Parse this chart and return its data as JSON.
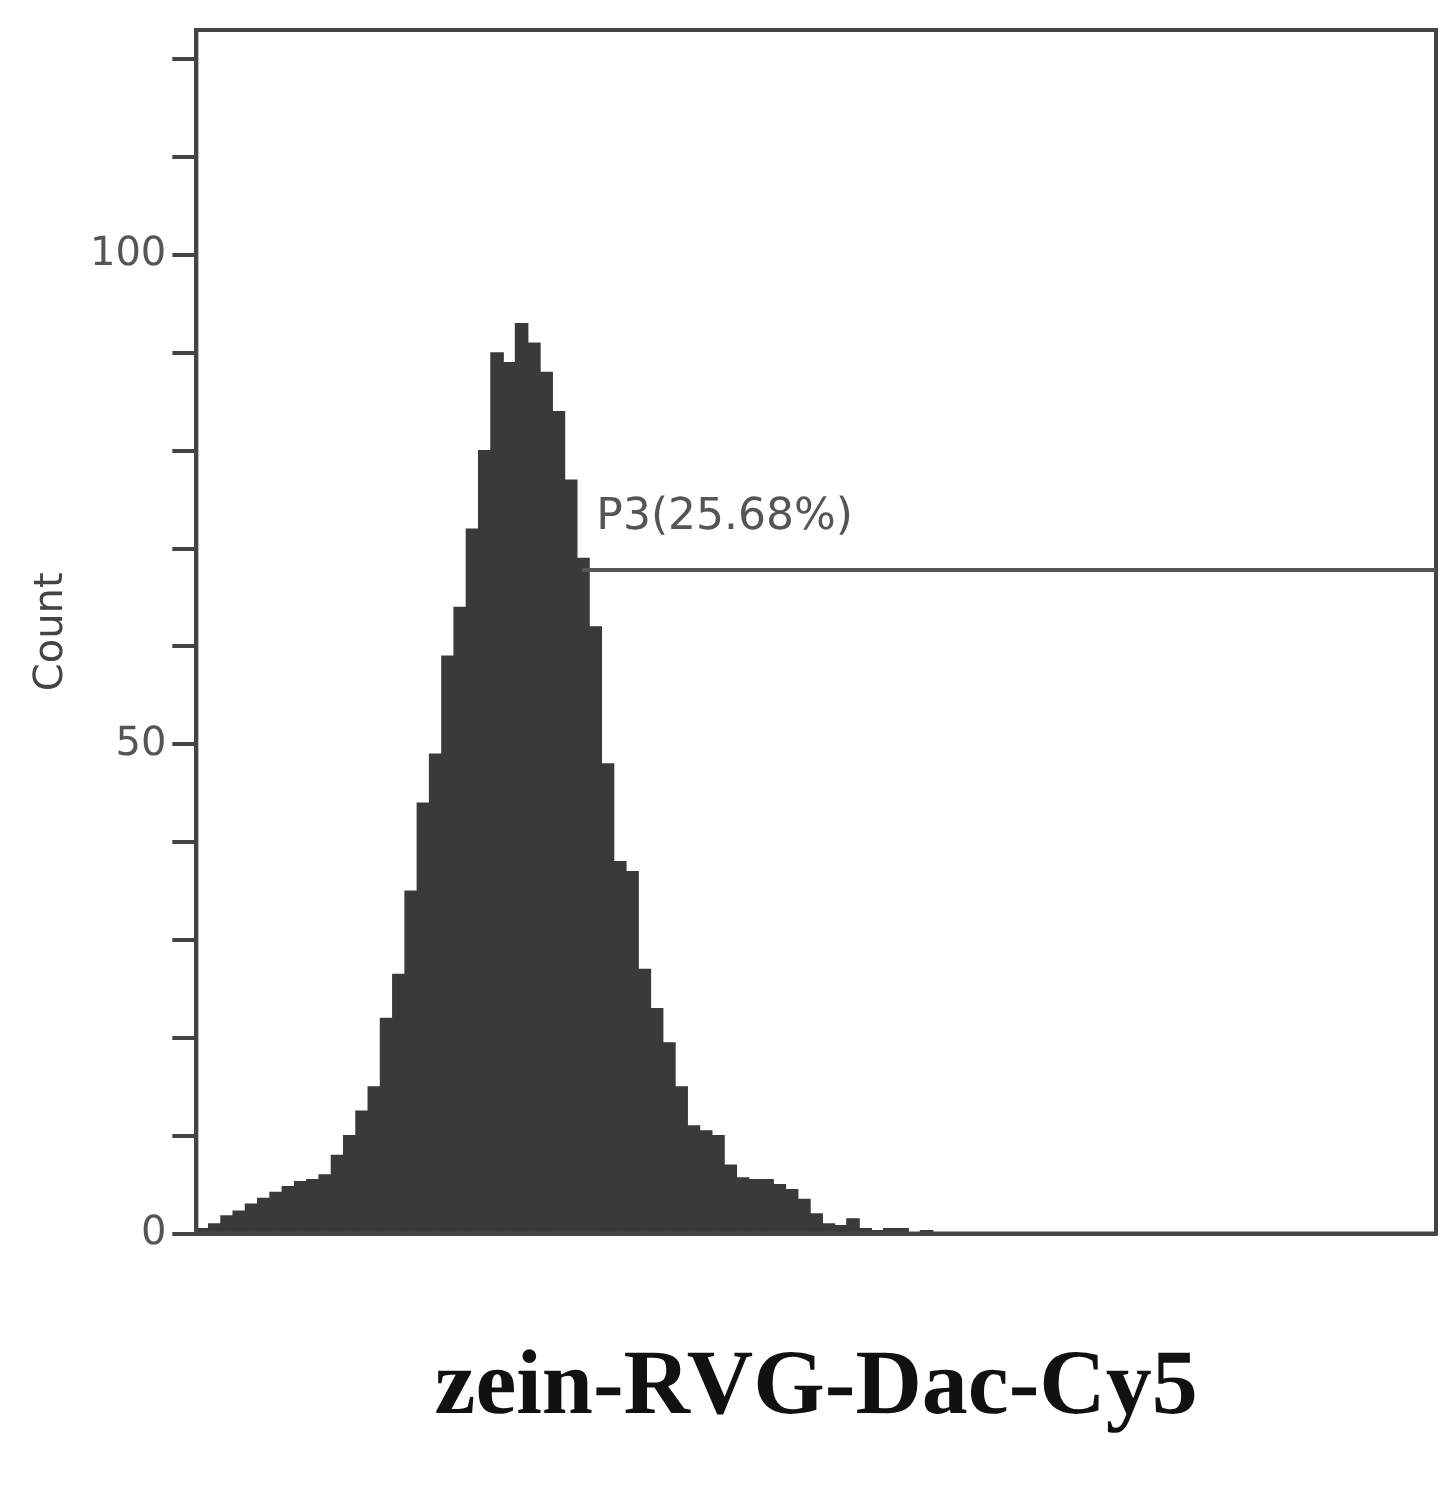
{
  "chart_data": {
    "type": "bar",
    "xlabel": "zein-RVG-Dac-Cy5",
    "ylabel": "Count",
    "annotations": [
      "P3(25.68%)"
    ],
    "categories": [
      null,
      null,
      null,
      null,
      null,
      null,
      null,
      null,
      null,
      null,
      null,
      null,
      null,
      null,
      null,
      null,
      null,
      null,
      null,
      null,
      null,
      null,
      null,
      null,
      null,
      null,
      null,
      null,
      null,
      null,
      null,
      null,
      null,
      null,
      null,
      null,
      null,
      null,
      null,
      null,
      null,
      null,
      null,
      null,
      null,
      null,
      null,
      null,
      null,
      null,
      null,
      null,
      null,
      null,
      null,
      null,
      null,
      null,
      null,
      null,
      null,
      null,
      null,
      null,
      null,
      null,
      null,
      null,
      null,
      null,
      null,
      null,
      null,
      null,
      null,
      null,
      null,
      null,
      null,
      null,
      null,
      null,
      null,
      null,
      null,
      null,
      null,
      null,
      null,
      null,
      null,
      null,
      null,
      null,
      null,
      null,
      null,
      null,
      null,
      null,
      null
    ],
    "values": [
      0.5,
      1,
      1.8,
      2.3,
      3,
      3.6,
      4.2,
      4.8,
      5.3,
      5.5,
      6,
      8,
      10,
      12.5,
      15,
      22,
      26.5,
      35,
      44,
      49,
      59,
      64,
      72,
      80,
      90,
      89,
      93,
      91,
      88,
      84,
      77,
      69,
      62,
      48,
      38,
      37,
      27,
      23,
      19.5,
      15,
      11,
      10.5,
      10,
      7,
      5.7,
      5.5,
      5.5,
      5,
      4.5,
      3.5,
      2,
      1,
      0.8,
      1.5,
      0.5,
      0.3,
      0.5,
      0.5,
      0.1,
      0.3,
      0,
      0,
      0,
      0,
      0,
      0,
      0,
      0,
      0,
      0,
      0,
      0,
      0,
      0,
      0,
      0,
      0,
      0,
      0,
      0,
      0,
      0,
      0,
      0,
      0,
      0,
      0,
      0,
      0,
      0,
      0,
      0,
      0,
      0,
      0,
      0,
      0,
      0,
      0,
      0,
      0
    ],
    "color": "#3a3a3a",
    "ylim": [
      0,
      123
    ],
    "yticks": [
      0,
      {
        "value": 10,
        "label": null
      },
      {
        "value": 20,
        "label": null
      },
      {
        "value": 30,
        "label": null
      },
      {
        "value": 40,
        "label": null
      },
      50,
      {
        "value": 60,
        "label": null
      },
      {
        "value": 70,
        "label": null
      },
      {
        "value": 80,
        "label": null
      },
      {
        "value": 90,
        "label": null
      },
      100,
      {
        "value": 110,
        "label": null
      },
      {
        "value": 120,
        "label": null
      }
    ],
    "grid": false,
    "legend": false
  }
}
